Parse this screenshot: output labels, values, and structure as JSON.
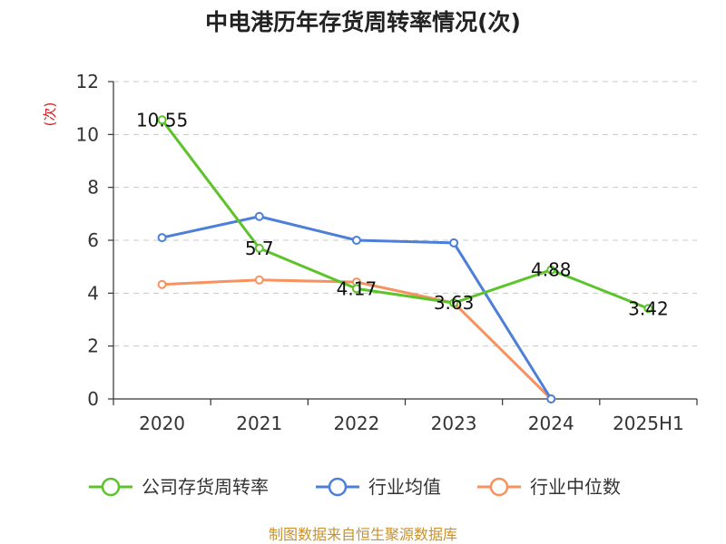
{
  "chart_data": {
    "type": "line",
    "title": "中电港历年存货周转率情况(次)",
    "ylabel": "(次)",
    "xlabel": "",
    "categories": [
      "2020",
      "2021",
      "2022",
      "2023",
      "2024",
      "2025H1"
    ],
    "ylim": [
      0,
      12
    ],
    "yticks": [
      0,
      2,
      4,
      6,
      8,
      10,
      12
    ],
    "grid": true,
    "legend_position": "bottom",
    "series": [
      {
        "name": "公司存货周转率",
        "color": "#5cc42a",
        "values": [
          10.55,
          5.7,
          4.17,
          3.63,
          4.88,
          3.42
        ],
        "labels": [
          "10.55",
          "5.7",
          "4.17",
          "3.63",
          "4.88",
          "3.42"
        ]
      },
      {
        "name": "行业均值",
        "color": "#4d7fd9",
        "values": [
          6.1,
          6.9,
          6.0,
          5.9,
          0,
          null
        ]
      },
      {
        "name": "行业中位数",
        "color": "#f7925f",
        "values": [
          4.33,
          4.5,
          4.42,
          3.63,
          0,
          null
        ]
      }
    ]
  },
  "footer": {
    "source": "制图数据来自恒生聚源数据库",
    "color": "#c8912e"
  },
  "colors": {
    "ylabel": "#d42020",
    "title": "#222222"
  }
}
